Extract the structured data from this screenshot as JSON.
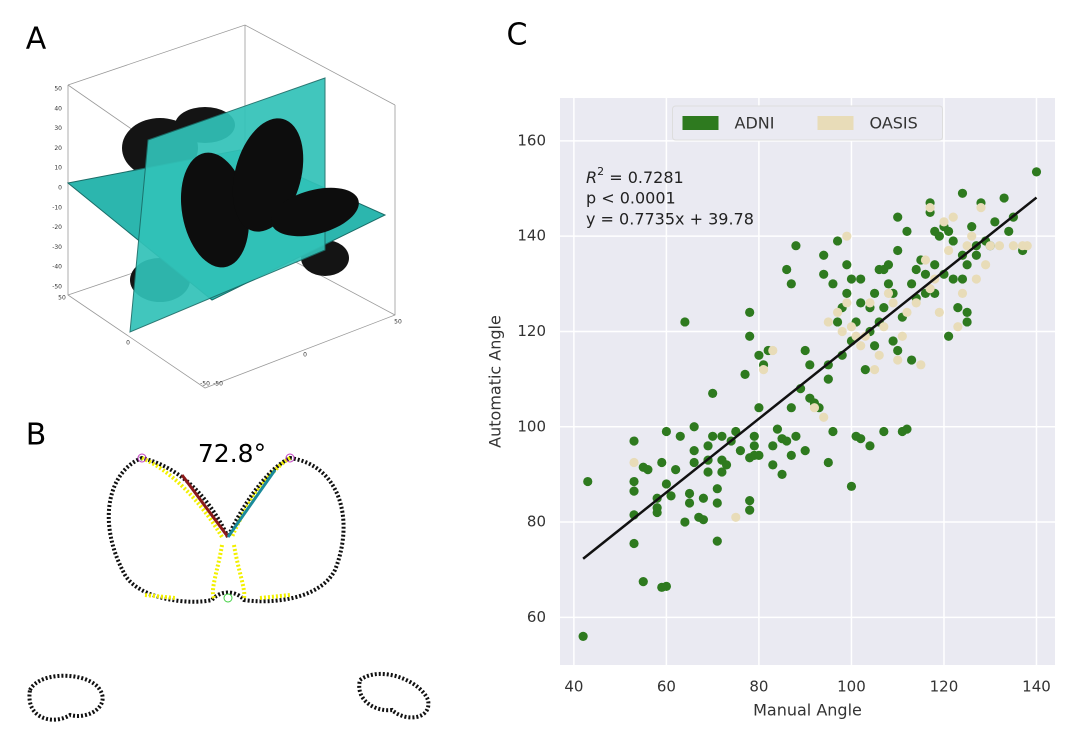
{
  "panels": {
    "a": {
      "label": "A",
      "z_tick_labels": [
        "50",
        "40",
        "30",
        "20",
        "10",
        "0",
        "-10",
        "-20",
        "-30",
        "-40",
        "-50"
      ],
      "floor_tick_labels": [
        "50",
        "0",
        "-50",
        "50",
        "0",
        "-50"
      ]
    },
    "b": {
      "label": "B",
      "angle_label": "72.8°"
    },
    "c": {
      "label": "C"
    }
  },
  "chart_data": {
    "type": "scatter",
    "x_label": "Manual Angle",
    "y_label": "Automatic Angle",
    "xlim": [
      37,
      144
    ],
    "ylim": [
      50,
      169
    ],
    "xticks": [
      40,
      60,
      80,
      100,
      120,
      140
    ],
    "yticks": [
      60,
      80,
      100,
      120,
      140,
      160
    ],
    "grid": true,
    "legend": "upper center",
    "annotation": {
      "r2_symbol": "R",
      "r2_exponent": "2",
      "r2_value": " = 0.7281",
      "p_value": "p < 0.0001",
      "equation": "y = 0.7735x + 39.78"
    },
    "fit_line": {
      "x": [
        42,
        140
      ],
      "y": [
        72.3,
        148.1
      ],
      "color": "#111111"
    },
    "series": [
      {
        "name": "ADNI",
        "color": "#2e7a1f",
        "x": [
          42,
          43,
          53,
          53,
          53,
          53,
          53,
          55,
          56,
          55,
          58,
          58,
          58,
          59,
          60,
          60,
          59,
          60,
          61,
          62,
          63,
          64,
          64,
          65,
          65,
          66,
          66,
          66,
          67,
          68,
          68,
          69,
          69,
          69,
          70,
          70,
          71,
          71,
          71,
          72,
          72,
          72,
          73,
          74,
          75,
          76,
          77,
          78,
          78,
          78,
          78,
          78,
          79,
          79,
          79,
          80,
          80,
          80,
          81,
          82,
          83,
          83,
          84,
          85,
          85,
          86,
          86,
          87,
          87,
          87,
          88,
          88,
          89,
          90,
          90,
          91,
          91,
          92,
          93,
          94,
          94,
          95,
          95,
          95,
          96,
          96,
          97,
          97,
          98,
          98,
          99,
          99,
          100,
          100,
          100,
          101,
          101,
          102,
          102,
          102,
          103,
          104,
          104,
          104,
          105,
          105,
          106,
          106,
          107,
          107,
          107,
          108,
          108,
          109,
          109,
          110,
          110,
          110,
          111,
          111,
          112,
          112,
          113,
          113,
          114,
          114,
          115,
          116,
          116,
          117,
          117,
          118,
          118,
          118,
          119,
          120,
          120,
          121,
          121,
          122,
          122,
          123,
          124,
          124,
          124,
          125,
          125,
          125,
          126,
          127,
          127,
          128,
          129,
          130,
          131,
          133,
          134,
          135,
          137,
          140
        ],
        "values": [
          56,
          88.5,
          97,
          88.5,
          86.5,
          81.5,
          75.5,
          91.5,
          91,
          67.5,
          85,
          83,
          82,
          66.3,
          66.5,
          99,
          92.5,
          88,
          85.5,
          91,
          98,
          122,
          80,
          84,
          86,
          92.5,
          95,
          100,
          81,
          80.5,
          85,
          90.5,
          93,
          96,
          98,
          107,
          76,
          84,
          87,
          90.5,
          93,
          98,
          92,
          97,
          99,
          95,
          111,
          119,
          124,
          82.5,
          84.5,
          93.5,
          94,
          96,
          98,
          94,
          104,
          115,
          113,
          116,
          92,
          96,
          99.5,
          90,
          97.5,
          97,
          133,
          94,
          104,
          130,
          98,
          138,
          108,
          95,
          116,
          106,
          113,
          105,
          104,
          132,
          136,
          92.5,
          110,
          113,
          99,
          130,
          139,
          122,
          115,
          125,
          128,
          134,
          87.5,
          131,
          118,
          98,
          122,
          97.5,
          126,
          131,
          112,
          96,
          120,
          125,
          128,
          117,
          122,
          133,
          99,
          125,
          133,
          130,
          134,
          118,
          128,
          116,
          137,
          144,
          99,
          123,
          99.5,
          141,
          114,
          130,
          127,
          133,
          135,
          132,
          128,
          145,
          147,
          141,
          128,
          134,
          140,
          142,
          132,
          141,
          119,
          139,
          131,
          125,
          149,
          136,
          131,
          134,
          124,
          122,
          142,
          138,
          136,
          147,
          139,
          138,
          143,
          148,
          141,
          144,
          137,
          153.5
        ]
      },
      {
        "name": "OASIS",
        "color": "#e8dcb8",
        "x": [
          53,
          75,
          81,
          83,
          92,
          94,
          95,
          97,
          98,
          99,
          99,
          100,
          101,
          102,
          103,
          104,
          105,
          106,
          107,
          108,
          109,
          110,
          111,
          112,
          114,
          115,
          116,
          117,
          117,
          118,
          119,
          120,
          121,
          122,
          123,
          124,
          125,
          126,
          127,
          128,
          129,
          130,
          132,
          135,
          137,
          138
        ],
        "values": [
          92.5,
          81,
          112,
          116,
          104,
          102,
          122,
          124,
          120,
          126,
          140,
          121,
          119,
          117,
          119,
          126,
          112,
          115,
          121,
          128,
          126,
          114,
          119,
          124,
          126,
          113,
          135,
          129,
          146,
          131,
          124,
          143,
          137,
          144,
          121,
          128,
          138,
          140,
          131,
          146,
          134,
          138,
          138,
          138,
          138,
          138
        ]
      }
    ]
  }
}
